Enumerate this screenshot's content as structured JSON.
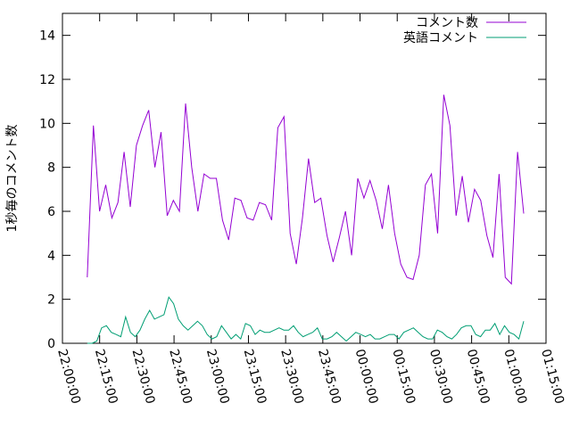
{
  "chart_data": {
    "type": "line",
    "title": "",
    "xlabel": "",
    "ylabel": "1秒毎のコメント数",
    "ylim": [
      0,
      15
    ],
    "xlim": [
      "22:00:00",
      "01:15:00"
    ],
    "x_ticks": [
      "22:00:00",
      "22:15:00",
      "22:30:00",
      "22:45:00",
      "23:00:00",
      "23:15:00",
      "23:30:00",
      "23:45:00",
      "00:00:00",
      "00:15:00",
      "00:30:00",
      "00:45:00",
      "01:00:00",
      "01:15:00"
    ],
    "y_ticks": [
      "0",
      "2",
      "4",
      "6",
      "8",
      "10",
      "12",
      "14"
    ],
    "y_tick_values": [
      0,
      2,
      4,
      6,
      8,
      10,
      12,
      14
    ],
    "legend_position": "top-right",
    "grid": false,
    "x_start": "22:10:00",
    "x_step": "00:02:00",
    "series": [
      {
        "name": "コメント数",
        "color": "#9400d3",
        "values": [
          3.0,
          9.9,
          6.0,
          7.2,
          5.7,
          6.4,
          8.7,
          6.2,
          9.0,
          9.9,
          10.6,
          8.0,
          9.6,
          5.8,
          6.5,
          6.0,
          10.9,
          8.0,
          6.0,
          7.7,
          7.5,
          7.5,
          5.6,
          4.7,
          6.6,
          6.5,
          5.7,
          5.6,
          6.4,
          6.3,
          5.6,
          9.8,
          10.3,
          5.0,
          3.6,
          5.7,
          8.4,
          6.4,
          6.6,
          4.9,
          3.7,
          4.8,
          6.0,
          4.0,
          7.5,
          6.6,
          7.4,
          6.5,
          5.2,
          7.2,
          5.0,
          3.6,
          3.0,
          2.9,
          4.0,
          7.2,
          7.7,
          5.0,
          11.3,
          9.9,
          5.8,
          7.6,
          5.5,
          7.0,
          6.5,
          4.9,
          3.9,
          7.7,
          3.0,
          2.7,
          8.7,
          5.9
        ],
        "x_step_minutes": 2.5
      },
      {
        "name": "英語コメント",
        "color": "#009e73",
        "values": [
          0.0,
          0.0,
          0.1,
          0.7,
          0.8,
          0.5,
          0.4,
          0.3,
          1.2,
          0.5,
          0.3,
          0.6,
          1.1,
          1.5,
          1.1,
          1.2,
          1.3,
          2.1,
          1.8,
          1.1,
          0.8,
          0.6,
          0.8,
          1.0,
          0.8,
          0.4,
          0.2,
          0.3,
          0.8,
          0.5,
          0.2,
          0.4,
          0.2,
          0.9,
          0.8,
          0.4,
          0.6,
          0.5,
          0.5,
          0.6,
          0.7,
          0.6,
          0.6,
          0.8,
          0.5,
          0.3,
          0.4,
          0.5,
          0.7,
          0.2,
          0.2,
          0.3,
          0.5,
          0.3,
          0.1,
          0.3,
          0.5,
          0.4,
          0.3,
          0.4,
          0.2,
          0.2,
          0.3,
          0.4,
          0.4,
          0.2,
          0.5,
          0.6,
          0.7,
          0.5,
          0.3,
          0.2,
          0.2,
          0.6,
          0.5,
          0.3,
          0.2,
          0.4,
          0.7,
          0.8,
          0.8,
          0.4,
          0.3,
          0.6,
          0.6,
          0.9,
          0.4,
          0.8,
          0.5,
          0.4,
          0.2,
          1.0
        ]
      }
    ]
  }
}
